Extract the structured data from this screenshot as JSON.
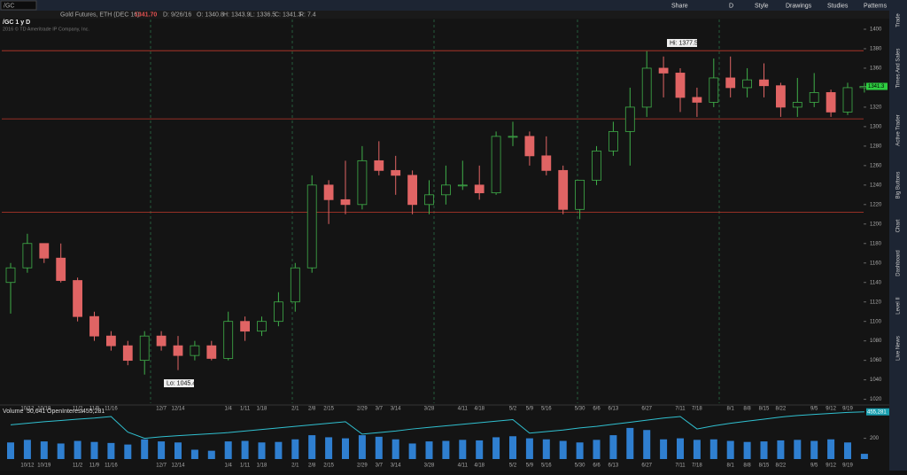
{
  "toolbar": {
    "symbol": "/GC",
    "buttons": [
      "Share",
      "D",
      "Style",
      "Drawings",
      "Studies",
      "Patterns"
    ]
  },
  "header": {
    "description": "Gold Futures, ETH (DEC 16)",
    "price": "1341.70",
    "stats": [
      "D: 9/26/16",
      "O: 1340.8",
      "H: 1343.9",
      "L: 1336.5",
      "C: 1341.3",
      "R: 7.4"
    ]
  },
  "chart_header": {
    "title": "/GC 1 y D",
    "copyright": "2016 © TD Ameritrade IP Company, Inc."
  },
  "sidebar": [
    "Trade",
    "Times And Sales",
    "Active Trader",
    "Big Buttons",
    "Chart",
    "Dashboard",
    "Level II",
    "Live News"
  ],
  "chart_data": [
    {
      "type": "candlestick",
      "categories": [
        null,
        "10/12",
        "10/19",
        null,
        "11/2",
        "11/9",
        "11/16",
        null,
        null,
        "12/7",
        "12/14",
        null,
        null,
        "1/4",
        "1/11",
        "1/18",
        null,
        "2/1",
        "2/8",
        "2/15",
        null,
        "2/29",
        "3/7",
        "3/14",
        null,
        "3/28",
        null,
        "4/11",
        "4/18",
        null,
        "5/2",
        "5/9",
        "5/16",
        null,
        "5/30",
        "6/6",
        "6/13",
        null,
        "6/27",
        null,
        "7/11",
        "7/18",
        null,
        "8/1",
        "8/8",
        "8/15",
        "8/22",
        null,
        "9/5",
        "9/12",
        "9/19",
        null
      ],
      "open": [
        1140,
        1155,
        1180,
        1165,
        1142,
        1105,
        1085,
        1075,
        1060,
        1085,
        1075,
        1065,
        1075,
        1062,
        1100,
        1090,
        1100,
        1120,
        1155,
        1240,
        1225,
        1220,
        1265,
        1255,
        1250,
        1220,
        1230,
        1240,
        1240,
        1232,
        1290,
        1290,
        1270,
        1255,
        1215,
        1245,
        1275,
        1295,
        1320,
        1360,
        1355,
        1330,
        1325,
        1350,
        1340,
        1348,
        1342,
        1320,
        1325,
        1335,
        1315,
        1340
      ],
      "high": [
        1160,
        1190,
        1180,
        1180,
        1145,
        1110,
        1090,
        1080,
        1090,
        1090,
        1085,
        1080,
        1080,
        1110,
        1105,
        1105,
        1130,
        1160,
        1250,
        1245,
        1265,
        1280,
        1285,
        1270,
        1255,
        1245,
        1260,
        1265,
        1260,
        1295,
        1305,
        1295,
        1290,
        1260,
        1245,
        1280,
        1305,
        1340,
        1377.5,
        1372,
        1360,
        1340,
        1370,
        1372,
        1360,
        1365,
        1345,
        1350,
        1355,
        1338,
        1345,
        1345
      ],
      "low": [
        1108,
        1150,
        1160,
        1140,
        1100,
        1080,
        1070,
        1055,
        1045.4,
        1070,
        1050,
        1060,
        1060,
        1060,
        1080,
        1085,
        1095,
        1110,
        1150,
        1200,
        1210,
        1215,
        1250,
        1230,
        1210,
        1210,
        1220,
        1235,
        1225,
        1230,
        1280,
        1260,
        1250,
        1210,
        1205,
        1240,
        1270,
        1260,
        1310,
        1330,
        1315,
        1310,
        1320,
        1330,
        1330,
        1330,
        1310,
        1310,
        1320,
        1310,
        1312,
        1335
      ],
      "close": [
        1155,
        1180,
        1165,
        1142,
        1105,
        1085,
        1075,
        1060,
        1085,
        1075,
        1065,
        1075,
        1062,
        1100,
        1090,
        1100,
        1120,
        1155,
        1240,
        1225,
        1220,
        1265,
        1255,
        1250,
        1220,
        1230,
        1240,
        1240,
        1232,
        1290,
        1290,
        1270,
        1255,
        1215,
        1245,
        1275,
        1295,
        1320,
        1360,
        1355,
        1330,
        1325,
        1350,
        1340,
        1348,
        1342,
        1320,
        1325,
        1335,
        1315,
        1340,
        1341.3
      ],
      "up_color": "#3fae49",
      "down_color": "#e06464",
      "ylim": [
        1016,
        1410
      ],
      "yticks": [
        1020,
        1040,
        1060,
        1080,
        1100,
        1120,
        1140,
        1160,
        1180,
        1200,
        1220,
        1240,
        1260,
        1280,
        1300,
        1320,
        1340,
        1360,
        1380,
        1400
      ],
      "hlines": [
        1378,
        1308,
        1212
      ],
      "hline_color": "#c0392b",
      "last_price": 1341.3,
      "annotations": [
        "Hi: 1377.5",
        "Lo: 1045.4"
      ]
    },
    {
      "type": "volume",
      "categories": [
        null,
        "10/12",
        "10/19",
        null,
        "11/2",
        "11/9",
        "11/16",
        null,
        null,
        "12/7",
        "12/14",
        null,
        null,
        "1/4",
        "1/11",
        "1/18",
        null,
        "2/1",
        "2/8",
        "2/15",
        null,
        "2/29",
        "3/7",
        "3/14",
        null,
        "3/28",
        null,
        "4/11",
        "4/18",
        null,
        "5/2",
        "5/9",
        "5/16",
        null,
        "5/30",
        "6/6",
        "6/13",
        null,
        "6/27",
        null,
        "7/11",
        "7/18",
        null,
        "8/1",
        "8/8",
        "8/15",
        "8/22",
        null,
        "9/5",
        "9/12",
        "9/19",
        null
      ],
      "series": [
        {
          "name": "Volume",
          "color": "#2f7fd0",
          "last_label": "50,641",
          "values": [
            160000,
            185000,
            170000,
            150000,
            175000,
            165000,
            155000,
            140000,
            190000,
            170000,
            160000,
            90000,
            80000,
            170000,
            175000,
            160000,
            165000,
            190000,
            230000,
            210000,
            200000,
            230000,
            215000,
            190000,
            150000,
            170000,
            175000,
            185000,
            180000,
            210000,
            220000,
            200000,
            190000,
            175000,
            160000,
            185000,
            230000,
            300000,
            280000,
            190000,
            200000,
            185000,
            190000,
            175000,
            165000,
            170000,
            180000,
            185000,
            175000,
            190000,
            160000,
            50641
          ]
        },
        {
          "name": "OpenInterest",
          "color": "#30c0d0",
          "last_label": "455,281",
          "values": [
            330000,
            345000,
            360000,
            372000,
            385000,
            395000,
            410000,
            260000,
            200000,
            215000,
            225000,
            235000,
            245000,
            255000,
            270000,
            285000,
            300000,
            315000,
            330000,
            345000,
            360000,
            240000,
            255000,
            270000,
            290000,
            305000,
            320000,
            335000,
            350000,
            365000,
            380000,
            250000,
            265000,
            280000,
            300000,
            315000,
            335000,
            355000,
            375000,
            395000,
            410000,
            290000,
            320000,
            345000,
            365000,
            385000,
            405000,
            420000,
            430000,
            440000,
            450000,
            455281
          ]
        }
      ],
      "ylim": [
        0,
        470000
      ],
      "yticks": [
        {
          "value": 200000,
          "label": "200"
        }
      ]
    }
  ]
}
